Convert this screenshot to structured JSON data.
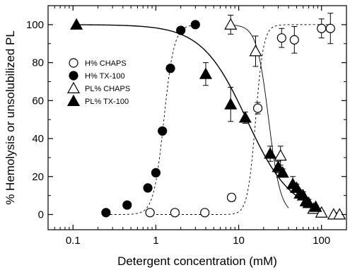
{
  "chart_data": {
    "type": "scatter",
    "title": "",
    "xlabel": "Detergent concentration (mM)",
    "ylabel": "% Hemolysis or unsolubilized PL",
    "xscale": "log",
    "xlim": [
      0.05,
      200
    ],
    "ylim": [
      -8,
      110
    ],
    "x_ticks": [
      0.1,
      1,
      10,
      100
    ],
    "x_tick_labels": [
      "0.1",
      "1",
      "10",
      "100"
    ],
    "y_ticks": [
      0,
      20,
      40,
      60,
      80,
      100
    ],
    "y_tick_labels": [
      "0",
      "20",
      "40",
      "60",
      "80",
      "100"
    ],
    "grid": false,
    "legend_position": "center-left",
    "series": [
      {
        "name": "H% CHAPS",
        "marker": "open-circle",
        "color": "#000000",
        "fit_style": "dashed",
        "x": [
          0.85,
          1.7,
          3.9,
          8.2,
          17,
          33,
          47,
          100,
          128
        ],
        "y": [
          1,
          1,
          1,
          9,
          56,
          93,
          92,
          98,
          98
        ],
        "err": [
          0,
          0,
          0,
          2,
          3,
          5,
          7,
          5,
          8
        ]
      },
      {
        "name": "H% TX-100",
        "marker": "filled-circle",
        "color": "#000000",
        "fit_style": "dashed",
        "x": [
          0.25,
          0.45,
          0.8,
          1.0,
          1.2,
          1.5,
          2.0,
          3.0
        ],
        "y": [
          1,
          5,
          14,
          22,
          44,
          77,
          97,
          100
        ],
        "err": [
          0,
          0,
          0,
          0,
          0,
          0,
          0,
          0
        ]
      },
      {
        "name": "PL% CHAPS",
        "marker": "open-triangle",
        "color": "#000000",
        "fit_style": "solid",
        "x": [
          8,
          16,
          32,
          65,
          80,
          100,
          140,
          165
        ],
        "y": [
          100,
          86,
          31,
          7,
          3,
          1,
          0,
          0
        ],
        "err": [
          5,
          8,
          5,
          2,
          2,
          1,
          1,
          1
        ]
      },
      {
        "name": "PL% TX-100",
        "marker": "filled-triangle",
        "color": "#000000",
        "fit_style": "solid",
        "x": [
          0.11,
          4,
          8,
          12,
          24,
          30,
          34,
          45,
          50,
          55,
          60,
          65,
          70,
          85
        ],
        "y": [
          100,
          74,
          58,
          51,
          32,
          25,
          22,
          16,
          14,
          11,
          10,
          7,
          6,
          4
        ],
        "err": [
          0,
          6,
          9,
          3,
          4,
          3,
          2,
          4,
          2,
          2,
          2,
          2,
          2,
          1
        ]
      }
    ]
  }
}
